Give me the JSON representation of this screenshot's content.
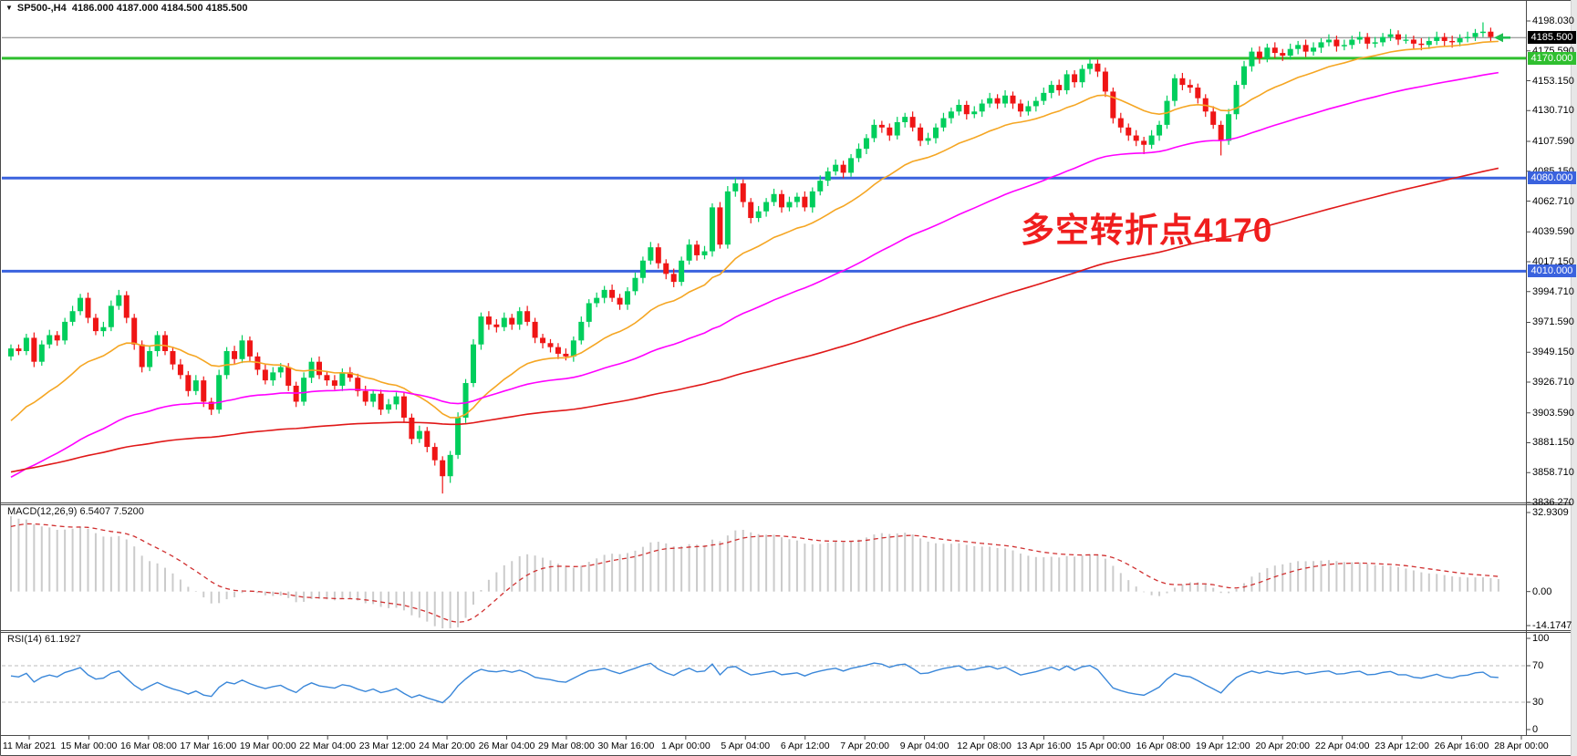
{
  "window": {
    "symbol_period": "SP500-,H4",
    "ohlc": "4186.000 4187.000 4184.500 4185.500"
  },
  "annotation": {
    "text": "多空转折点4170",
    "color": "#F01E1E"
  },
  "indicators": {
    "macd": {
      "label": "MACD(12,26,9)",
      "value1": "6.5407",
      "value2": "7.5200"
    },
    "rsi": {
      "label": "RSI(14)",
      "value": "61.1927"
    }
  },
  "price_axis": {
    "badges": [
      {
        "text": "4185.500",
        "price": 4185.5,
        "bg": "#000000",
        "fg": "#ffffff"
      },
      {
        "text": "4170.000",
        "price": 4170.0,
        "bg": "#2FBF2F",
        "fg": "#ffffff"
      },
      {
        "text": "4080.000",
        "price": 4080.0,
        "bg": "#3A62DE",
        "fg": "#ffffff"
      },
      {
        "text": "4010.000",
        "price": 4010.0,
        "bg": "#3A62DE",
        "fg": "#ffffff"
      }
    ]
  },
  "colors": {
    "bull": "#00CE5C",
    "bear": "#EF1515",
    "ma_fast": "#F5A623",
    "ma_mid": "#FF00FF",
    "ma_slow": "#E01818",
    "hist": "#CBCBCB",
    "signal": "#D03030",
    "rsi": "#3A87D9",
    "green_line": "#2FBF2F",
    "blue_line": "#3A62DE",
    "price_line": "#808080",
    "level_dash": "#BBBBBB",
    "border": "#4A4A4A",
    "arrow": "#1DBE4F"
  },
  "chart_data": {
    "type": "candlestick",
    "symbol": "SP500-",
    "timeframe": "H4",
    "last_bar": {
      "open": 4186.0,
      "high": 4187.0,
      "low": 4184.5,
      "close": 4185.5
    },
    "y_axis": {
      "labels": [
        "4198.030",
        "4175.590",
        "4153.150",
        "4130.710",
        "4107.590",
        "4085.150",
        "4062.710",
        "4039.590",
        "4017.150",
        "3994.710",
        "3971.590",
        "3949.150",
        "3926.710",
        "3903.590",
        "3881.150",
        "3858.710",
        "3836.270"
      ],
      "top_price": 4198.03,
      "bottom_price": 3836.27
    },
    "x_axis": {
      "labels": [
        "11 Mar 2021",
        "15 Mar 00:00",
        "16 Mar 08:00",
        "17 Mar 16:00",
        "19 Mar 00:00",
        "22 Mar 04:00",
        "23 Mar 12:00",
        "24 Mar 20:00",
        "26 Mar 04:00",
        "29 Mar 08:00",
        "30 Mar 16:00",
        "1 Apr 00:00",
        "5 Apr 04:00",
        "6 Apr 12:00",
        "7 Apr 20:00",
        "9 Apr 04:00",
        "12 Apr 08:00",
        "13 Apr 16:00",
        "15 Apr 00:00",
        "16 Apr 08:00",
        "19 Apr 12:00",
        "20 Apr 20:00",
        "22 Apr 04:00",
        "23 Apr 12:00",
        "26 Apr 16:00",
        "28 Apr 00:00"
      ]
    },
    "horizontal_lines": [
      {
        "price": 4170.0,
        "color": "#2FBF2F",
        "width": 3
      },
      {
        "price": 4080.0,
        "color": "#3A62DE",
        "width": 3
      },
      {
        "price": 4010.0,
        "color": "#3A62DE",
        "width": 3
      }
    ],
    "price_line": 4185.5,
    "moving_averages": [
      {
        "name": "fast",
        "period": 20,
        "seed": 3892,
        "color_key": "ma_fast"
      },
      {
        "name": "mid",
        "period": 60,
        "seed": 3852,
        "color_key": "ma_mid"
      },
      {
        "name": "slow",
        "period": 160,
        "seed": 3858,
        "color_key": "ma_slow"
      }
    ],
    "macd": {
      "params": [
        12,
        26,
        9
      ],
      "current_macd": 6.5407,
      "current_signal": 7.52,
      "axis_labels": [
        "32.9309",
        "0.00",
        "-14.1747"
      ],
      "axis_max": 32.9309,
      "axis_min": -14.1747,
      "seed_fast": 3930,
      "seed_slow": 3898,
      "seed_signal": 26
    },
    "rsi": {
      "period": 14,
      "current": 61.1927,
      "levels": [
        70,
        30
      ],
      "axis_labels": [
        "100",
        "70",
        "30",
        "0"
      ],
      "seed_gain": 5,
      "seed_loss": 3.5
    },
    "candles": [
      [
        3946,
        3955,
        3943,
        3952
      ],
      [
        3952,
        3955,
        3947,
        3950
      ],
      [
        3950,
        3963,
        3947,
        3960
      ],
      [
        3960,
        3964,
        3938,
        3942
      ],
      [
        3942,
        3958,
        3939,
        3955
      ],
      [
        3955,
        3966,
        3952,
        3962
      ],
      [
        3962,
        3965,
        3954,
        3958
      ],
      [
        3958,
        3975,
        3955,
        3972
      ],
      [
        3972,
        3984,
        3969,
        3980
      ],
      [
        3980,
        3993,
        3977,
        3990
      ],
      [
        3990,
        3994,
        3971,
        3975
      ],
      [
        3975,
        3978,
        3962,
        3965
      ],
      [
        3965,
        3972,
        3961,
        3968
      ],
      [
        3968,
        3988,
        3965,
        3984
      ],
      [
        3984,
        3996,
        3981,
        3992
      ],
      [
        3992,
        3995,
        3971,
        3975
      ],
      [
        3975,
        3978,
        3951,
        3955
      ],
      [
        3955,
        3958,
        3934,
        3938
      ],
      [
        3938,
        3954,
        3935,
        3950
      ],
      [
        3950,
        3965,
        3946,
        3962
      ],
      [
        3962,
        3965,
        3947,
        3950
      ],
      [
        3950,
        3953,
        3936,
        3940
      ],
      [
        3940,
        3944,
        3929,
        3932
      ],
      [
        3932,
        3935,
        3916,
        3920
      ],
      [
        3920,
        3932,
        3917,
        3928
      ],
      [
        3928,
        3931,
        3908,
        3912
      ],
      [
        3912,
        3915,
        3902,
        3906
      ],
      [
        3906,
        3936,
        3903,
        3932
      ],
      [
        3932,
        3953,
        3929,
        3950
      ],
      [
        3950,
        3954,
        3940,
        3944
      ],
      [
        3944,
        3962,
        3941,
        3958
      ],
      [
        3958,
        3961,
        3942,
        3946
      ],
      [
        3946,
        3949,
        3932,
        3936
      ],
      [
        3936,
        3940,
        3925,
        3928
      ],
      [
        3928,
        3938,
        3924,
        3934
      ],
      [
        3934,
        3941,
        3930,
        3938
      ],
      [
        3938,
        3941,
        3920,
        3924
      ],
      [
        3924,
        3927,
        3908,
        3912
      ],
      [
        3912,
        3934,
        3909,
        3930
      ],
      [
        3930,
        3945,
        3926,
        3942
      ],
      [
        3942,
        3946,
        3929,
        3932
      ],
      [
        3932,
        3935,
        3924,
        3928
      ],
      [
        3928,
        3932,
        3921,
        3924
      ],
      [
        3924,
        3937,
        3920,
        3934
      ],
      [
        3934,
        3938,
        3927,
        3930
      ],
      [
        3930,
        3933,
        3916,
        3920
      ],
      [
        3920,
        3924,
        3909,
        3912
      ],
      [
        3912,
        3921,
        3908,
        3918
      ],
      [
        3918,
        3921,
        3902,
        3906
      ],
      [
        3906,
        3914,
        3903,
        3910
      ],
      [
        3910,
        3919,
        3906,
        3916
      ],
      [
        3916,
        3919,
        3896,
        3900
      ],
      [
        3900,
        3903,
        3880,
        3884
      ],
      [
        3884,
        3894,
        3881,
        3890
      ],
      [
        3890,
        3893,
        3874,
        3878
      ],
      [
        3878,
        3881,
        3864,
        3868
      ],
      [
        3868,
        3871,
        3843,
        3856
      ],
      [
        3856,
        3875,
        3851,
        3872
      ],
      [
        3872,
        3904,
        3869,
        3900
      ],
      [
        3900,
        3929,
        3896,
        3926
      ],
      [
        3926,
        3959,
        3923,
        3955
      ],
      [
        3955,
        3979,
        3951,
        3976
      ],
      [
        3976,
        3980,
        3966,
        3970
      ],
      [
        3970,
        3974,
        3964,
        3968
      ],
      [
        3968,
        3979,
        3965,
        3975
      ],
      [
        3975,
        3978,
        3966,
        3970
      ],
      [
        3970,
        3983,
        3966,
        3980
      ],
      [
        3980,
        3984,
        3969,
        3972
      ],
      [
        3972,
        3975,
        3956,
        3960
      ],
      [
        3960,
        3963,
        3952,
        3956
      ],
      [
        3956,
        3959,
        3949,
        3953
      ],
      [
        3953,
        3956,
        3944,
        3948
      ],
      [
        3948,
        3952,
        3943,
        3946
      ],
      [
        3946,
        3961,
        3942,
        3958
      ],
      [
        3958,
        3976,
        3955,
        3972
      ],
      [
        3972,
        3989,
        3968,
        3986
      ],
      [
        3986,
        3994,
        3983,
        3990
      ],
      [
        3990,
        3999,
        3986,
        3996
      ],
      [
        3996,
        4000,
        3987,
        3990
      ],
      [
        3990,
        3993,
        3981,
        3985
      ],
      [
        3985,
        3998,
        3981,
        3995
      ],
      [
        3995,
        4009,
        3992,
        4005
      ],
      [
        4005,
        4021,
        4001,
        4018
      ],
      [
        4018,
        4032,
        4015,
        4028
      ],
      [
        4028,
        4031,
        4012,
        4016
      ],
      [
        4016,
        4019,
        4004,
        4008
      ],
      [
        4008,
        4012,
        3998,
        4002
      ],
      [
        4002,
        4021,
        3999,
        4018
      ],
      [
        4018,
        4034,
        4015,
        4030
      ],
      [
        4030,
        4033,
        4018,
        4022
      ],
      [
        4022,
        4029,
        4019,
        4025
      ],
      [
        4025,
        4061,
        4021,
        4058
      ],
      [
        4058,
        4062,
        4027,
        4030
      ],
      [
        4030,
        4074,
        4027,
        4070
      ],
      [
        4070,
        4080,
        4066,
        4076
      ],
      [
        4076,
        4079,
        4058,
        4062
      ],
      [
        4062,
        4065,
        4046,
        4050
      ],
      [
        4050,
        4059,
        4047,
        4055
      ],
      [
        4055,
        4065,
        4051,
        4062
      ],
      [
        4062,
        4072,
        4059,
        4068
      ],
      [
        4068,
        4071,
        4054,
        4058
      ],
      [
        4058,
        4066,
        4055,
        4062
      ],
      [
        4062,
        4069,
        4058,
        4066
      ],
      [
        4066,
        4070,
        4055,
        4058
      ],
      [
        4058,
        4073,
        4054,
        4070
      ],
      [
        4070,
        4082,
        4067,
        4078
      ],
      [
        4078,
        4088,
        4074,
        4085
      ],
      [
        4085,
        4094,
        4082,
        4090
      ],
      [
        4090,
        4093,
        4080,
        4084
      ],
      [
        4084,
        4098,
        4081,
        4095
      ],
      [
        4095,
        4106,
        4092,
        4102
      ],
      [
        4102,
        4113,
        4098,
        4110
      ],
      [
        4110,
        4124,
        4107,
        4120
      ],
      [
        4120,
        4123,
        4114,
        4118
      ],
      [
        4118,
        4121,
        4108,
        4112
      ],
      [
        4112,
        4126,
        4109,
        4122
      ],
      [
        4122,
        4129,
        4118,
        4126
      ],
      [
        4126,
        4130,
        4115,
        4118
      ],
      [
        4118,
        4121,
        4104,
        4108
      ],
      [
        4108,
        4114,
        4105,
        4110
      ],
      [
        4110,
        4121,
        4106,
        4118
      ],
      [
        4118,
        4129,
        4115,
        4125
      ],
      [
        4125,
        4133,
        4121,
        4130
      ],
      [
        4130,
        4139,
        4127,
        4135
      ],
      [
        4135,
        4138,
        4124,
        4128
      ],
      [
        4128,
        4134,
        4125,
        4130
      ],
      [
        4130,
        4139,
        4126,
        4136
      ],
      [
        4136,
        4144,
        4133,
        4140
      ],
      [
        4140,
        4143,
        4132,
        4136
      ],
      [
        4136,
        4146,
        4133,
        4142
      ],
      [
        4142,
        4145,
        4132,
        4136
      ],
      [
        4136,
        4139,
        4126,
        4130
      ],
      [
        4130,
        4138,
        4127,
        4134
      ],
      [
        4134,
        4141,
        4130,
        4138
      ],
      [
        4138,
        4148,
        4135,
        4144
      ],
      [
        4144,
        4153,
        4140,
        4150
      ],
      [
        4150,
        4154,
        4142,
        4146
      ],
      [
        4146,
        4161,
        4143,
        4158
      ],
      [
        4158,
        4161,
        4148,
        4152
      ],
      [
        4152,
        4165,
        4148,
        4162
      ],
      [
        4162,
        4170,
        4158,
        4166
      ],
      [
        4166,
        4169,
        4156,
        4160
      ],
      [
        4160,
        4163,
        4141,
        4145
      ],
      [
        4145,
        4148,
        4121,
        4125
      ],
      [
        4125,
        4129,
        4114,
        4118
      ],
      [
        4118,
        4121,
        4108,
        4112
      ],
      [
        4112,
        4116,
        4104,
        4108
      ],
      [
        4108,
        4111,
        4098,
        4105
      ],
      [
        4105,
        4116,
        4102,
        4112
      ],
      [
        4112,
        4123,
        4108,
        4120
      ],
      [
        4120,
        4142,
        4117,
        4138
      ],
      [
        4138,
        4158,
        4134,
        4155
      ],
      [
        4155,
        4159,
        4146,
        4150
      ],
      [
        4150,
        4154,
        4144,
        4148
      ],
      [
        4148,
        4151,
        4136,
        4140
      ],
      [
        4140,
        4143,
        4126,
        4130
      ],
      [
        4130,
        4134,
        4117,
        4120
      ],
      [
        4120,
        4123,
        4097,
        4108
      ],
      [
        4108,
        4132,
        4105,
        4128
      ],
      [
        4128,
        4153,
        4124,
        4150
      ],
      [
        4150,
        4168,
        4147,
        4164
      ],
      [
        4164,
        4178,
        4160,
        4175
      ],
      [
        4175,
        4179,
        4166,
        4170
      ],
      [
        4170,
        4181,
        4167,
        4178
      ],
      [
        4178,
        4182,
        4170,
        4174
      ],
      [
        4174,
        4177,
        4168,
        4172
      ],
      [
        4172,
        4181,
        4169,
        4177
      ],
      [
        4177,
        4183,
        4173,
        4180
      ],
      [
        4180,
        4184,
        4171,
        4175
      ],
      [
        4175,
        4182,
        4172,
        4178
      ],
      [
        4178,
        4185,
        4174,
        4182
      ],
      [
        4182,
        4188,
        4179,
        4184
      ],
      [
        4184,
        4187,
        4175,
        4179
      ],
      [
        4179,
        4184,
        4176,
        4180
      ],
      [
        4180,
        4187,
        4177,
        4184
      ],
      [
        4184,
        4190,
        4181,
        4186
      ],
      [
        4186,
        4189,
        4177,
        4181
      ],
      [
        4181,
        4186,
        4178,
        4182
      ],
      [
        4182,
        4189,
        4179,
        4186
      ],
      [
        4186,
        4192,
        4183,
        4188
      ],
      [
        4188,
        4191,
        4180,
        4184
      ],
      [
        4184,
        4188,
        4181,
        4184
      ],
      [
        4184,
        4187,
        4177,
        4181
      ],
      [
        4181,
        4185,
        4176,
        4180
      ],
      [
        4180,
        4186,
        4177,
        4183
      ],
      [
        4183,
        4190,
        4180,
        4186
      ],
      [
        4186,
        4189,
        4179,
        4183
      ],
      [
        4183,
        4187,
        4178,
        4182
      ],
      [
        4182,
        4188,
        4179,
        4185
      ],
      [
        4185,
        4190,
        4182,
        4186
      ],
      [
        4186,
        4192,
        4183,
        4189
      ],
      [
        4189,
        4197,
        4186,
        4190
      ],
      [
        4190,
        4193,
        4183,
        4186
      ],
      [
        4186,
        4187,
        4184.5,
        4185.5
      ]
    ]
  }
}
